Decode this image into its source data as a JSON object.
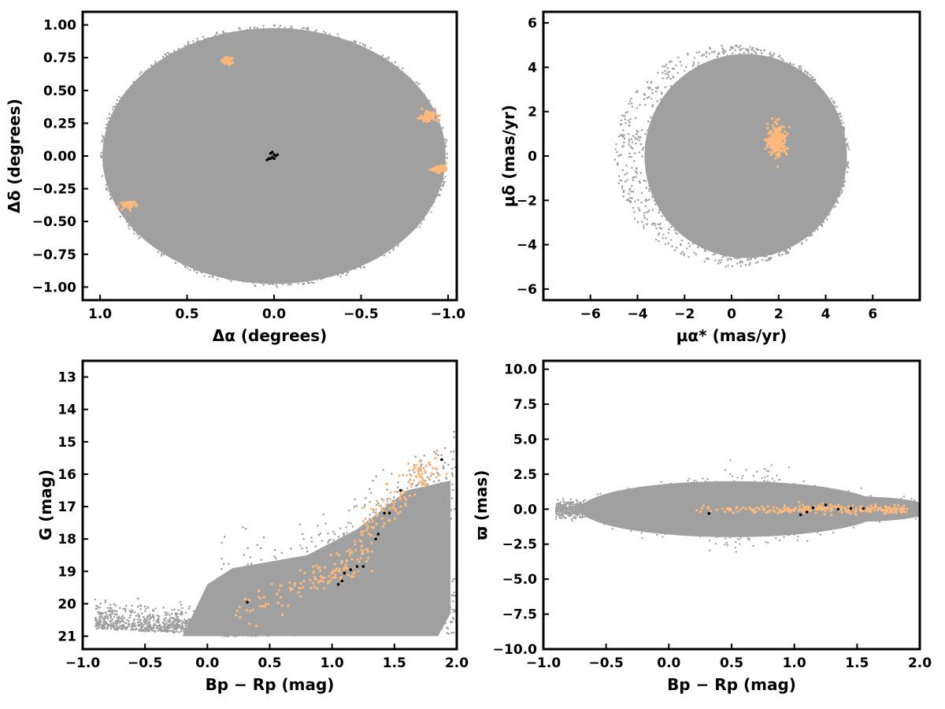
{
  "colors": {
    "field": "#a0a0a0",
    "members": "#fdb97d",
    "selected": "#000000",
    "frame": "#000000"
  },
  "chart_data": [
    {
      "type": "scatter",
      "name": "sky-positions",
      "xlabel": "Δα (degrees)",
      "ylabel": "Δδ (degrees)",
      "xlim": [
        1.1,
        -1.05
      ],
      "ylim": [
        -1.1,
        1.1
      ],
      "x_inverted": true,
      "xticks": [
        1.0,
        0.5,
        0.0,
        -0.5,
        -1.0
      ],
      "xtick_labels": [
        "1.0",
        "0.5",
        "0.0",
        "−0.5",
        "−1.0"
      ],
      "yticks": [
        1.0,
        0.75,
        0.5,
        0.25,
        0.0,
        -0.25,
        -0.5,
        -0.75,
        -1.0
      ],
      "ytick_labels": [
        "1.00",
        "0.75",
        "0.50",
        "0.25",
        "0.00",
        "−0.25",
        "−0.50",
        "−0.75",
        "−1.00"
      ],
      "field": {
        "shape": "disc",
        "center": [
          0.0,
          0.0
        ],
        "radius": 1.0
      },
      "member_clusters": [
        {
          "center": [
            0.27,
            0.73
          ],
          "spread": [
            0.012,
            0.012
          ]
        },
        {
          "center": [
            -0.89,
            0.3
          ],
          "spread": [
            0.025,
            0.022
          ]
        },
        {
          "center": [
            -0.95,
            -0.1
          ],
          "spread": [
            0.02,
            0.012
          ]
        },
        {
          "center": [
            0.83,
            -0.37
          ],
          "spread": [
            0.02,
            0.015
          ]
        }
      ],
      "selected_points": [
        [
          0.02,
          0.02
        ],
        [
          0.0,
          0.01
        ],
        [
          -0.01,
          0.0
        ],
        [
          0.01,
          -0.01
        ],
        [
          0.03,
          -0.02
        ],
        [
          0.0,
          -0.02
        ],
        [
          -0.02,
          0.01
        ],
        [
          0.01,
          0.03
        ],
        [
          0.02,
          -0.02
        ],
        [
          0.04,
          -0.03
        ]
      ],
      "grid": false
    },
    {
      "type": "scatter",
      "name": "proper-motions",
      "xlabel": "μα* (mas/yr)",
      "ylabel": "μδ (mas/yr)",
      "xlim": [
        -8,
        8
      ],
      "ylim": [
        -6.5,
        6.5
      ],
      "xticks": [
        -6,
        -4,
        -2,
        0,
        2,
        4,
        6
      ],
      "xtick_labels": [
        "−6",
        "−4",
        "−2",
        "0",
        "2",
        "4",
        "6"
      ],
      "yticks": [
        -6,
        -4,
        -2,
        0,
        2,
        4,
        6
      ],
      "ytick_labels": [
        "−6",
        "−4",
        "−2",
        "0",
        "2",
        "4",
        "6"
      ],
      "field": {
        "shape": "disc",
        "center": [
          0.0,
          0.0
        ],
        "radius": 5.0
      },
      "member_clusters": [
        {
          "center": [
            1.95,
            0.7
          ],
          "spread": [
            0.2,
            0.35
          ]
        }
      ],
      "grid": false
    },
    {
      "type": "scatter",
      "name": "color-magnitude",
      "xlabel": "Bp − Rp (mag)",
      "ylabel": "G (mag)",
      "xlim": [
        -1.0,
        2.0
      ],
      "ylim": [
        21.4,
        12.5
      ],
      "y_inverted": true,
      "xticks": [
        -1.0,
        -0.5,
        0.0,
        0.5,
        1.0,
        1.5,
        2.0
      ],
      "xtick_labels": [
        "−1.0",
        "−0.5",
        "0.0",
        "0.5",
        "1.0",
        "1.5",
        "2.0"
      ],
      "yticks": [
        21,
        20,
        19,
        18,
        17,
        16,
        15,
        14,
        13
      ],
      "ytick_labels": [
        "21",
        "20",
        "19",
        "18",
        "17",
        "16",
        "15",
        "14",
        "13"
      ],
      "member_sequence": [
        [
          0.3,
          20.3
        ],
        [
          0.6,
          19.8
        ],
        [
          0.9,
          19.1
        ],
        [
          1.05,
          18.9
        ],
        [
          1.2,
          18.6
        ],
        [
          1.3,
          17.8
        ],
        [
          1.4,
          17.1
        ],
        [
          1.55,
          16.6
        ],
        [
          1.7,
          16.1
        ],
        [
          1.8,
          15.9
        ]
      ],
      "selected_points": [
        [
          0.32,
          19.95
        ],
        [
          1.05,
          19.4
        ],
        [
          1.08,
          19.3
        ],
        [
          1.1,
          19.05
        ],
        [
          1.15,
          18.95
        ],
        [
          1.2,
          18.85
        ],
        [
          1.25,
          18.85
        ],
        [
          1.35,
          18.0
        ],
        [
          1.37,
          17.85
        ],
        [
          1.42,
          17.2
        ],
        [
          1.46,
          17.2
        ],
        [
          1.55,
          16.5
        ],
        [
          1.88,
          15.55
        ]
      ],
      "grid": false
    },
    {
      "type": "scatter",
      "name": "parallax-color",
      "xlabel": "Bp − Rp (mag)",
      "ylabel": "ϖ (mas)",
      "xlim": [
        -1.0,
        2.0
      ],
      "ylim": [
        -10,
        10.6
      ],
      "xticks": [
        -1.0,
        -0.5,
        0.0,
        0.5,
        1.0,
        1.5,
        2.0
      ],
      "xtick_labels": [
        "−1.0",
        "−0.5",
        "0.0",
        "0.5",
        "1.0",
        "1.5",
        "2.0"
      ],
      "yticks": [
        10.0,
        7.5,
        5.0,
        2.5,
        0.0,
        -2.5,
        -5.0,
        -7.5,
        -10.0
      ],
      "ytick_labels": [
        "10.0",
        "7.5",
        "5.0",
        "2.5",
        "0.0",
        "−2.5",
        "−5.0",
        "−7.5",
        "−10.0"
      ],
      "selected_points": [
        [
          0.32,
          -0.3
        ],
        [
          1.05,
          -0.4
        ],
        [
          1.1,
          -0.2
        ],
        [
          1.15,
          0.1
        ],
        [
          1.25,
          0.3
        ],
        [
          1.35,
          0.0
        ],
        [
          1.45,
          0.05
        ],
        [
          1.55,
          0.05
        ]
      ],
      "grid": false
    }
  ]
}
